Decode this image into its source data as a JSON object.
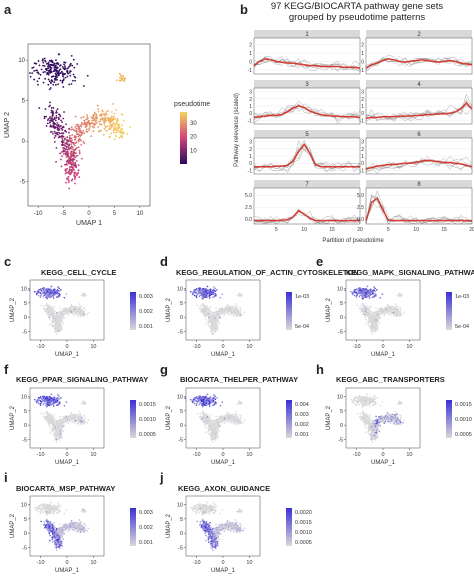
{
  "panel_letters": {
    "a": "a",
    "b": "b",
    "c": "c",
    "d": "d",
    "e": "e",
    "f": "f",
    "g": "g",
    "h": "h",
    "i": "i",
    "j": "j"
  },
  "panel_b_title_line1": "97 KEGG/BIOCARTA pathway gene sets",
  "panel_b_title_line2": "grouped by pseudotime patterns",
  "colors": {
    "pseudotime_low": "#2a0a5e",
    "pseudotime_mid": "#d1417a",
    "pseudotime_high": "#f6d35a",
    "expr_high": "#3a2fd6",
    "expr_low": "#d9d9d9",
    "red_line": "#d43a2f",
    "grey_line": "#6a6a6a"
  },
  "chart_data": [
    {
      "id": "a",
      "type": "scatter",
      "xlabel": "UMAP 1",
      "ylabel": "UMAP 2",
      "x_ticks": [
        "-10",
        "-5",
        "0",
        "5",
        "10"
      ],
      "y_ticks": [
        "10",
        "5",
        "0",
        "-5"
      ],
      "xlim": [
        -12,
        12
      ],
      "ylim": [
        -8,
        12
      ],
      "legend": {
        "title": "pseudotime",
        "ticks": [
          "30",
          "20",
          "10"
        ],
        "range": [
          0,
          38
        ],
        "placement": "right"
      }
    },
    {
      "id": "b",
      "type": "line",
      "xlabel": "Partition of pseudotime",
      "ylabel": "Pathway relevance (scaled)",
      "x_ticks": [
        "5",
        "10",
        "15",
        "20"
      ],
      "xlim": [
        1,
        20
      ],
      "facets": [
        {
          "label": "1",
          "y_ticks": [
            "2",
            "1",
            "0",
            "-1"
          ],
          "ylim": [
            -1.5,
            2.8
          ],
          "red": [
            -0.5,
            0.0,
            0.3,
            0.2,
            0.0,
            -0.1,
            -0.2,
            -0.2,
            -0.3,
            -0.4,
            -0.5,
            -0.5,
            -0.6,
            -0.6,
            -0.6,
            -0.6,
            -0.7,
            -0.7,
            -0.7,
            -0.8
          ]
        },
        {
          "label": "2",
          "y_ticks": [
            "2",
            "1",
            "0",
            "-1"
          ],
          "ylim": [
            -1.5,
            2.8
          ],
          "red": [
            -0.8,
            -0.4,
            -0.2,
            0.1,
            0.3,
            0.2,
            0.0,
            -0.1,
            0.0,
            0.1,
            0.2,
            0.1,
            0.0,
            -0.1,
            0.0,
            0.1,
            0.0,
            -0.2,
            -0.3,
            -0.4
          ]
        },
        {
          "label": "3",
          "y_ticks": [
            "3",
            "2",
            "1",
            "0",
            "-1"
          ],
          "ylim": [
            -1.5,
            3.5
          ],
          "red": [
            -0.6,
            -0.5,
            -0.4,
            -0.3,
            -0.3,
            -0.2,
            0.2,
            0.7,
            1.0,
            0.8,
            0.3,
            0.0,
            -0.2,
            -0.3,
            -0.4,
            -0.4,
            -0.5,
            -0.5,
            -0.5,
            -0.6
          ]
        },
        {
          "label": "4",
          "y_ticks": [
            "3",
            "2",
            "1",
            "0",
            "-1"
          ],
          "ylim": [
            -1.5,
            3.5
          ],
          "red": [
            -0.7,
            -0.6,
            -0.6,
            -0.5,
            -0.5,
            -0.5,
            -0.4,
            -0.4,
            -0.4,
            -0.3,
            -0.3,
            -0.2,
            -0.2,
            -0.1,
            -0.1,
            0.0,
            0.2,
            0.6,
            1.4,
            0.6
          ]
        },
        {
          "label": "5",
          "y_ticks": [
            "3",
            "2",
            "1",
            "0",
            "-1"
          ],
          "ylim": [
            -1.5,
            3.5
          ],
          "red": [
            -0.5,
            -0.5,
            -0.5,
            -0.5,
            -0.4,
            -0.4,
            -0.3,
            0.3,
            1.6,
            2.6,
            1.4,
            -0.2,
            -0.5,
            -0.5,
            -0.5,
            -0.5,
            -0.5,
            -0.5,
            -0.5,
            -0.5
          ]
        },
        {
          "label": "6",
          "y_ticks": [
            "3",
            "2",
            "1",
            "0",
            "-1"
          ],
          "ylim": [
            -1.5,
            3.5
          ],
          "red": [
            -0.8,
            -0.6,
            -0.4,
            -0.3,
            -0.2,
            -0.2,
            -0.1,
            0.0,
            0.0,
            0.1,
            0.3,
            0.4,
            0.3,
            0.2,
            0.1,
            0.1,
            0.0,
            -0.1,
            -0.3,
            -0.5
          ]
        },
        {
          "label": "7",
          "y_ticks": [
            "5.0",
            "2.5",
            "0.0"
          ],
          "ylim": [
            -1.0,
            6.5
          ],
          "red": [
            -0.3,
            -0.3,
            -0.3,
            -0.3,
            -0.3,
            -0.2,
            -0.1,
            0.5,
            1.8,
            1.0,
            0.2,
            -0.3,
            -0.3,
            -0.3,
            -0.3,
            -0.3,
            -0.3,
            -0.3,
            -0.3,
            -0.3
          ]
        },
        {
          "label": "8",
          "y_ticks": [
            "5.0",
            "2.5",
            "0.0"
          ],
          "ylim": [
            -1.0,
            6.5
          ],
          "red": [
            -0.3,
            3.5,
            4.4,
            2.0,
            -0.2,
            -0.3,
            -0.3,
            -0.3,
            -0.3,
            -0.3,
            -0.3,
            -0.3,
            -0.3,
            -0.3,
            -0.3,
            -0.3,
            -0.3,
            -0.3,
            -0.3,
            -0.3
          ]
        }
      ]
    },
    {
      "id": "c",
      "type": "scatter",
      "title": "KEGG_CELL_CYCLE",
      "xlabel": "UMAP_1",
      "ylabel": "UMAP_2",
      "x_ticks": [
        "-10",
        "0",
        "10"
      ],
      "y_ticks": [
        "10",
        "5",
        "0",
        "-5"
      ],
      "legend_ticks": [
        "0.003",
        "0.002",
        "0.001"
      ],
      "highlight": "top"
    },
    {
      "id": "d",
      "type": "scatter",
      "title": "KEGG_REGULATION_OF_ACTIN_CYTOSKELETON",
      "xlabel": "UMAP_1",
      "ylabel": "UMAP_2",
      "x_ticks": [
        "-10",
        "0",
        "10"
      ],
      "y_ticks": [
        "10",
        "5",
        "0",
        "-5"
      ],
      "legend_ticks": [
        "1e-03",
        "5e-04"
      ],
      "highlight": "top"
    },
    {
      "id": "e",
      "type": "scatter",
      "title": "KEGG_MAPK_SIGNALING_PATHWAY",
      "xlabel": "UMAP_1",
      "ylabel": "UMAP_2",
      "x_ticks": [
        "-10",
        "0",
        "10"
      ],
      "y_ticks": [
        "10",
        "5",
        "0",
        "-5"
      ],
      "legend_ticks": [
        "1e-03",
        "5e-04"
      ],
      "highlight": "top"
    },
    {
      "id": "f",
      "type": "scatter",
      "title": "KEGG_PPAR_SIGNALING_PATHWAY",
      "xlabel": "UMAP_1",
      "ylabel": "UMAP_2",
      "x_ticks": [
        "-10",
        "0",
        "10"
      ],
      "y_ticks": [
        "10",
        "5",
        "0",
        "-5"
      ],
      "legend_ticks": [
        "0.0015",
        "0.0010",
        "0.0005"
      ],
      "highlight": "top"
    },
    {
      "id": "g",
      "type": "scatter",
      "title": "BIOCARTA_THELPER_PATHWAY",
      "xlabel": "UMAP_1",
      "ylabel": "UMAP_2",
      "x_ticks": [
        "-10",
        "0",
        "10"
      ],
      "y_ticks": [
        "10",
        "5",
        "0",
        "-5"
      ],
      "legend_ticks": [
        "0.004",
        "0.003",
        "0.002",
        "0.001"
      ],
      "highlight": "top"
    },
    {
      "id": "h",
      "type": "scatter",
      "title": "KEGG_ABC_TRANSPORTERS",
      "xlabel": "UMAP_1",
      "ylabel": "UMAP_2",
      "x_ticks": [
        "-10",
        "0",
        "10"
      ],
      "y_ticks": [
        "10",
        "5",
        "0",
        "-5"
      ],
      "legend_ticks": [
        "0.0015",
        "0.0010",
        "0.0005"
      ],
      "highlight": "arm"
    },
    {
      "id": "i",
      "type": "scatter",
      "title": "BIOCARTA_MSP_PATHWAY",
      "xlabel": "UMAP_1",
      "ylabel": "UMAP_2",
      "x_ticks": [
        "-10",
        "0",
        "10"
      ],
      "y_ticks": [
        "10",
        "5",
        "0",
        "-5"
      ],
      "legend_ticks": [
        "0.003",
        "0.002",
        "0.001"
      ],
      "highlight": "bottom"
    },
    {
      "id": "j",
      "type": "scatter",
      "title": "KEGG_AXON_GUIDANCE",
      "xlabel": "UMAP_1",
      "ylabel": "UMAP_2",
      "x_ticks": [
        "-10",
        "0",
        "10"
      ],
      "y_ticks": [
        "10",
        "5",
        "0",
        "-5"
      ],
      "legend_ticks": [
        "0.0020",
        "0.0015",
        "0.0010",
        "0.0005"
      ],
      "highlight": "bottom"
    }
  ]
}
